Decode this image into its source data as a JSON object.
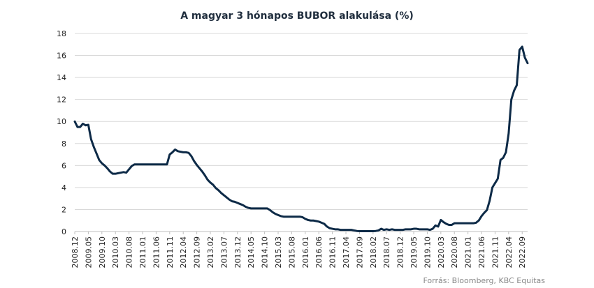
{
  "colors": {
    "line": "#0d2a47",
    "grid": "#d9d9d9",
    "text": "#222222",
    "source": "#888888"
  },
  "chart_data": {
    "type": "line",
    "title": "A magyar 3 hónapos BUBOR alakulása (%)",
    "xlabel": "",
    "ylabel": "",
    "ylim": [
      0,
      18
    ],
    "yticks": [
      "0",
      "2",
      "4",
      "6",
      "8",
      "10",
      "12",
      "14",
      "16",
      "18"
    ],
    "grid": true,
    "x_start": "2008.12",
    "x_end": "2022.11",
    "xticks": [
      "2008.12",
      "2009.05",
      "2009.10",
      "2010.03",
      "2010.08",
      "2011.01",
      "2011.06",
      "2011.11",
      "2012.04",
      "2012.09",
      "2013.02",
      "2013.07",
      "2013.12",
      "2014.05",
      "2014.10",
      "2015.03",
      "2015.08",
      "2016.01",
      "2016.06",
      "2016.11",
      "2017.04",
      "2017.09",
      "2018.02",
      "2018.07",
      "2018.12",
      "2019.05",
      "2019.10",
      "2020.03",
      "2020.08",
      "2021.01",
      "2021.06",
      "2021.11",
      "2022.04",
      "2022.09"
    ],
    "source": "Forrás: Bloomberg, KBC Equitas",
    "series": [
      {
        "points": [
          [
            "2008.12",
            10.0
          ],
          [
            "2009.01",
            9.5
          ],
          [
            "2009.02",
            9.5
          ],
          [
            "2009.03",
            9.8
          ],
          [
            "2009.04",
            9.65
          ],
          [
            "2009.05",
            9.7
          ],
          [
            "2009.06",
            8.4
          ],
          [
            "2009.07",
            7.7
          ],
          [
            "2009.08",
            7.1
          ],
          [
            "2009.09",
            6.5
          ],
          [
            "2009.10",
            6.2
          ],
          [
            "2009.11",
            6.0
          ],
          [
            "2009.12",
            5.75
          ],
          [
            "2010.01",
            5.45
          ],
          [
            "2010.02",
            5.25
          ],
          [
            "2010.03",
            5.25
          ],
          [
            "2010.04",
            5.3
          ],
          [
            "2010.05",
            5.35
          ],
          [
            "2010.06",
            5.4
          ],
          [
            "2010.07",
            5.35
          ],
          [
            "2010.08",
            5.65
          ],
          [
            "2010.09",
            5.95
          ],
          [
            "2010.10",
            6.1
          ],
          [
            "2010.11",
            6.1
          ],
          [
            "2010.12",
            6.1
          ],
          [
            "2011.01",
            6.1
          ],
          [
            "2011.06",
            6.1
          ],
          [
            "2011.10",
            6.1
          ],
          [
            "2011.11",
            7.0
          ],
          [
            "2011.12",
            7.2
          ],
          [
            "2012.01",
            7.45
          ],
          [
            "2012.02",
            7.3
          ],
          [
            "2012.03",
            7.25
          ],
          [
            "2012.04",
            7.2
          ],
          [
            "2012.05",
            7.2
          ],
          [
            "2012.06",
            7.15
          ],
          [
            "2012.07",
            6.85
          ],
          [
            "2012.08",
            6.4
          ],
          [
            "2012.09",
            6.05
          ],
          [
            "2012.10",
            5.75
          ],
          [
            "2012.11",
            5.45
          ],
          [
            "2012.12",
            5.1
          ],
          [
            "2013.01",
            4.7
          ],
          [
            "2013.02",
            4.45
          ],
          [
            "2013.03",
            4.25
          ],
          [
            "2013.04",
            3.95
          ],
          [
            "2013.05",
            3.75
          ],
          [
            "2013.06",
            3.5
          ],
          [
            "2013.07",
            3.3
          ],
          [
            "2013.08",
            3.1
          ],
          [
            "2013.09",
            2.9
          ],
          [
            "2013.10",
            2.75
          ],
          [
            "2013.11",
            2.7
          ],
          [
            "2013.12",
            2.6
          ],
          [
            "2014.01",
            2.5
          ],
          [
            "2014.02",
            2.4
          ],
          [
            "2014.03",
            2.25
          ],
          [
            "2014.04",
            2.15
          ],
          [
            "2014.05",
            2.1
          ],
          [
            "2014.10",
            2.1
          ],
          [
            "2014.11",
            2.1
          ],
          [
            "2014.12",
            1.95
          ],
          [
            "2015.01",
            1.75
          ],
          [
            "2015.02",
            1.6
          ],
          [
            "2015.03",
            1.5
          ],
          [
            "2015.04",
            1.4
          ],
          [
            "2015.05",
            1.35
          ],
          [
            "2015.08",
            1.35
          ],
          [
            "2015.10",
            1.35
          ],
          [
            "2015.11",
            1.35
          ],
          [
            "2015.12",
            1.3
          ],
          [
            "2016.01",
            1.15
          ],
          [
            "2016.02",
            1.05
          ],
          [
            "2016.03",
            1.0
          ],
          [
            "2016.04",
            1.0
          ],
          [
            "2016.05",
            0.95
          ],
          [
            "2016.06",
            0.9
          ],
          [
            "2016.07",
            0.8
          ],
          [
            "2016.08",
            0.7
          ],
          [
            "2016.09",
            0.45
          ],
          [
            "2016.10",
            0.3
          ],
          [
            "2016.11",
            0.25
          ],
          [
            "2016.12",
            0.2
          ],
          [
            "2017.01",
            0.2
          ],
          [
            "2017.02",
            0.15
          ],
          [
            "2017.03",
            0.15
          ],
          [
            "2017.04",
            0.15
          ],
          [
            "2017.05",
            0.15
          ],
          [
            "2017.06",
            0.15
          ],
          [
            "2017.07",
            0.1
          ],
          [
            "2017.08",
            0.05
          ],
          [
            "2017.09",
            0.03
          ],
          [
            "2017.10",
            0.03
          ],
          [
            "2017.11",
            0.03
          ],
          [
            "2017.12",
            0.03
          ],
          [
            "2018.01",
            0.03
          ],
          [
            "2018.02",
            0.03
          ],
          [
            "2018.03",
            0.05
          ],
          [
            "2018.04",
            0.1
          ],
          [
            "2018.05",
            0.25
          ],
          [
            "2018.06",
            0.15
          ],
          [
            "2018.07",
            0.2
          ],
          [
            "2018.08",
            0.15
          ],
          [
            "2018.09",
            0.2
          ],
          [
            "2018.10",
            0.15
          ],
          [
            "2018.11",
            0.15
          ],
          [
            "2018.12",
            0.15
          ],
          [
            "2019.01",
            0.15
          ],
          [
            "2019.02",
            0.2
          ],
          [
            "2019.03",
            0.2
          ],
          [
            "2019.04",
            0.2
          ],
          [
            "2019.05",
            0.25
          ],
          [
            "2019.06",
            0.25
          ],
          [
            "2019.07",
            0.2
          ],
          [
            "2019.08",
            0.2
          ],
          [
            "2019.09",
            0.2
          ],
          [
            "2019.10",
            0.2
          ],
          [
            "2019.11",
            0.15
          ],
          [
            "2019.12",
            0.25
          ],
          [
            "2020.01",
            0.55
          ],
          [
            "2020.02",
            0.45
          ],
          [
            "2020.03",
            1.05
          ],
          [
            "2020.04",
            0.85
          ],
          [
            "2020.05",
            0.7
          ],
          [
            "2020.06",
            0.6
          ],
          [
            "2020.07",
            0.6
          ],
          [
            "2020.08",
            0.75
          ],
          [
            "2020.09",
            0.75
          ],
          [
            "2020.10",
            0.75
          ],
          [
            "2020.11",
            0.75
          ],
          [
            "2020.12",
            0.75
          ],
          [
            "2021.01",
            0.75
          ],
          [
            "2021.02",
            0.75
          ],
          [
            "2021.03",
            0.75
          ],
          [
            "2021.04",
            0.8
          ],
          [
            "2021.05",
            1.0
          ],
          [
            "2021.06",
            1.4
          ],
          [
            "2021.07",
            1.7
          ],
          [
            "2021.08",
            1.95
          ],
          [
            "2021.09",
            2.8
          ],
          [
            "2021.10",
            4.0
          ],
          [
            "2021.11",
            4.4
          ],
          [
            "2021.12",
            4.8
          ],
          [
            "2022.01",
            6.5
          ],
          [
            "2022.02",
            6.7
          ],
          [
            "2022.03",
            7.2
          ],
          [
            "2022.04",
            8.9
          ],
          [
            "2022.05",
            12.0
          ],
          [
            "2022.06",
            12.8
          ],
          [
            "2022.07",
            13.3
          ],
          [
            "2022.08",
            16.5
          ],
          [
            "2022.09",
            16.8
          ],
          [
            "2022.10",
            15.8
          ],
          [
            "2022.11",
            15.3
          ]
        ]
      }
    ]
  }
}
